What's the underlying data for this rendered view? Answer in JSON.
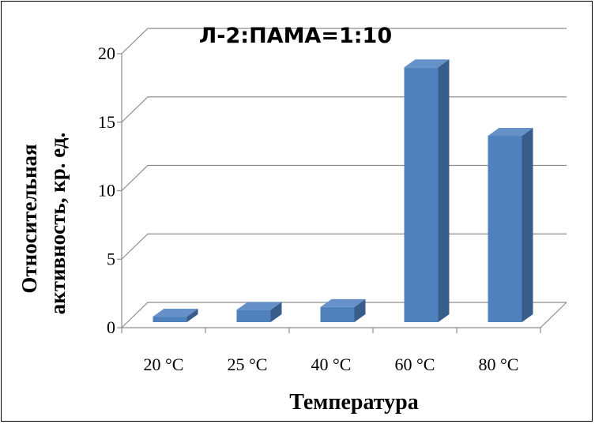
{
  "chart_data": {
    "type": "bar",
    "title": "Л-2:ПАМА=1:10",
    "xlabel": "Температура",
    "ylabel_lines": [
      "Относительная",
      "активность, кр. ед."
    ],
    "categories": [
      "20 °C",
      "25 °C",
      "40 °C",
      "60 °C",
      "80 °C"
    ],
    "values": [
      0.4,
      0.9,
      1.1,
      18.6,
      13.6
    ],
    "ylim": [
      0,
      20
    ],
    "yticks": [
      "0",
      "5",
      "10",
      "15",
      "20"
    ],
    "grid": true,
    "legend": "none",
    "colors": {
      "front": "#4f81bd",
      "side": "#385d8a",
      "top": "#6690c8"
    }
  }
}
